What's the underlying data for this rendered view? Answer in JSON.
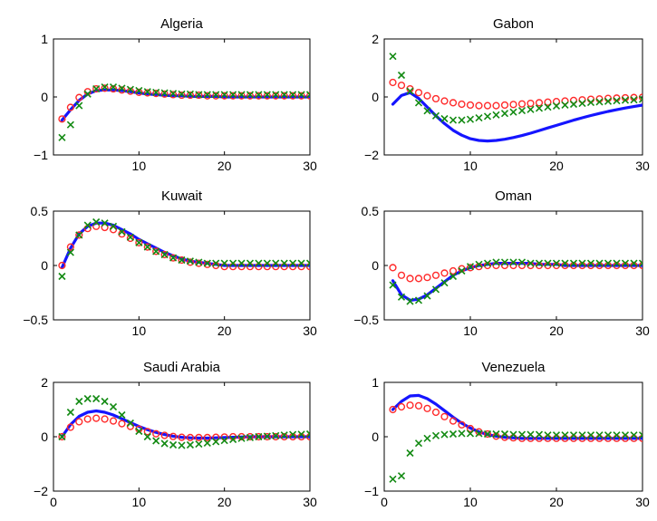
{
  "figure": {
    "colors": {
      "line": "#1515ff",
      "circles": "#ff2a2a",
      "crosses": "#138a13",
      "axes": "#000000"
    }
  },
  "chart_data": [
    {
      "type": "line",
      "title": "Algeria",
      "xlim": [
        0,
        30
      ],
      "ylim": [
        -1,
        1
      ],
      "xticks": [
        10,
        20,
        30
      ],
      "xtick_labels": [
        "10",
        "20",
        "30"
      ],
      "yticks": [
        -1,
        0,
        1
      ],
      "ytick_labels": [
        "−1",
        "0",
        "1"
      ],
      "x": [
        1,
        2,
        3,
        4,
        5,
        6,
        7,
        8,
        9,
        10,
        11,
        12,
        13,
        14,
        15,
        16,
        17,
        18,
        19,
        20,
        21,
        22,
        23,
        24,
        25,
        26,
        27,
        28,
        29,
        30
      ],
      "series": [
        {
          "marker": "line",
          "values": [
            -0.4,
            -0.22,
            -0.06,
            0.05,
            0.11,
            0.12,
            0.12,
            0.11,
            0.09,
            0.07,
            0.05,
            0.04,
            0.03,
            0.02,
            0.02,
            0.01,
            0.01,
            0.01,
            0.01,
            0.0,
            0.0,
            0.0,
            0.0,
            0.0,
            0.0,
            0.0,
            0.0,
            0.0,
            0.0,
            0.0
          ]
        },
        {
          "marker": "circle",
          "values": [
            -0.38,
            -0.18,
            -0.01,
            0.09,
            0.14,
            0.15,
            0.14,
            0.12,
            0.1,
            0.08,
            0.07,
            0.06,
            0.05,
            0.04,
            0.03,
            0.03,
            0.03,
            0.02,
            0.02,
            0.02,
            0.02,
            0.02,
            0.02,
            0.02,
            0.02,
            0.02,
            0.02,
            0.02,
            0.02,
            0.02
          ]
        },
        {
          "marker": "cross",
          "values": [
            -0.7,
            -0.48,
            -0.15,
            0.05,
            0.14,
            0.17,
            0.17,
            0.15,
            0.13,
            0.11,
            0.09,
            0.08,
            0.07,
            0.06,
            0.05,
            0.05,
            0.04,
            0.04,
            0.04,
            0.04,
            0.04,
            0.04,
            0.04,
            0.04,
            0.04,
            0.04,
            0.04,
            0.04,
            0.04,
            0.04
          ]
        }
      ]
    },
    {
      "type": "line",
      "title": "Gabon",
      "xlim": [
        0,
        30
      ],
      "ylim": [
        -2,
        2
      ],
      "xticks": [
        10,
        20,
        30
      ],
      "xtick_labels": [
        "10",
        "20",
        "30"
      ],
      "yticks": [
        -2,
        0,
        2
      ],
      "ytick_labels": [
        "−2",
        "0",
        "2"
      ],
      "x": [
        1,
        2,
        3,
        4,
        5,
        6,
        7,
        8,
        9,
        10,
        11,
        12,
        13,
        14,
        15,
        16,
        17,
        18,
        19,
        20,
        21,
        22,
        23,
        24,
        25,
        26,
        27,
        28,
        29,
        30
      ],
      "series": [
        {
          "marker": "line",
          "values": [
            -0.25,
            0.05,
            0.15,
            -0.05,
            -0.35,
            -0.65,
            -0.92,
            -1.15,
            -1.32,
            -1.44,
            -1.5,
            -1.52,
            -1.5,
            -1.46,
            -1.4,
            -1.33,
            -1.25,
            -1.16,
            -1.07,
            -0.98,
            -0.89,
            -0.8,
            -0.72,
            -0.64,
            -0.57,
            -0.5,
            -0.44,
            -0.38,
            -0.33,
            -0.28
          ]
        },
        {
          "marker": "circle",
          "values": [
            0.5,
            0.4,
            0.28,
            0.15,
            0.04,
            -0.06,
            -0.14,
            -0.2,
            -0.25,
            -0.28,
            -0.3,
            -0.3,
            -0.3,
            -0.28,
            -0.26,
            -0.24,
            -0.22,
            -0.2,
            -0.18,
            -0.16,
            -0.14,
            -0.12,
            -0.1,
            -0.08,
            -0.07,
            -0.05,
            -0.04,
            -0.03,
            -0.02,
            -0.01
          ]
        },
        {
          "marker": "cross",
          "values": [
            1.4,
            0.75,
            0.2,
            -0.2,
            -0.48,
            -0.65,
            -0.75,
            -0.8,
            -0.8,
            -0.77,
            -0.72,
            -0.67,
            -0.62,
            -0.57,
            -0.52,
            -0.47,
            -0.43,
            -0.39,
            -0.35,
            -0.31,
            -0.28,
            -0.25,
            -0.22,
            -0.19,
            -0.17,
            -0.15,
            -0.13,
            -0.11,
            -0.1,
            -0.08
          ]
        }
      ]
    },
    {
      "type": "line",
      "title": "Kuwait",
      "xlim": [
        0,
        30
      ],
      "ylim": [
        -0.5,
        0.5
      ],
      "xticks": [
        10,
        20,
        30
      ],
      "xtick_labels": [
        "10",
        "20",
        "30"
      ],
      "yticks": [
        -0.5,
        0,
        0.5
      ],
      "ytick_labels": [
        "−0.5",
        "0",
        "0.5"
      ],
      "x": [
        1,
        2,
        3,
        4,
        5,
        6,
        7,
        8,
        9,
        10,
        11,
        12,
        13,
        14,
        15,
        16,
        17,
        18,
        19,
        20,
        21,
        22,
        23,
        24,
        25,
        26,
        27,
        28,
        29,
        30
      ],
      "series": [
        {
          "marker": "line",
          "values": [
            -0.02,
            0.16,
            0.29,
            0.36,
            0.39,
            0.39,
            0.37,
            0.33,
            0.29,
            0.24,
            0.2,
            0.16,
            0.12,
            0.09,
            0.06,
            0.04,
            0.03,
            0.02,
            0.01,
            0.0,
            0.0,
            0.0,
            0.0,
            0.0,
            0.0,
            0.0,
            0.0,
            0.0,
            0.0,
            0.0
          ]
        },
        {
          "marker": "circle",
          "values": [
            0.0,
            0.17,
            0.28,
            0.34,
            0.36,
            0.35,
            0.33,
            0.29,
            0.25,
            0.21,
            0.17,
            0.13,
            0.1,
            0.07,
            0.05,
            0.03,
            0.02,
            0.01,
            0.0,
            -0.01,
            -0.01,
            -0.01,
            -0.01,
            -0.01,
            -0.01,
            -0.01,
            -0.01,
            -0.01,
            -0.01,
            -0.01
          ]
        },
        {
          "marker": "cross",
          "values": [
            -0.1,
            0.12,
            0.28,
            0.37,
            0.4,
            0.39,
            0.36,
            0.31,
            0.26,
            0.21,
            0.17,
            0.13,
            0.1,
            0.07,
            0.05,
            0.04,
            0.03,
            0.02,
            0.02,
            0.02,
            0.02,
            0.02,
            0.02,
            0.02,
            0.02,
            0.02,
            0.02,
            0.02,
            0.02,
            0.02
          ]
        }
      ]
    },
    {
      "type": "line",
      "title": "Oman",
      "xlim": [
        0,
        30
      ],
      "ylim": [
        -0.5,
        0.5
      ],
      "xticks": [
        10,
        20,
        30
      ],
      "xtick_labels": [
        "10",
        "20",
        "30"
      ],
      "yticks": [
        -0.5,
        0,
        0.5
      ],
      "ytick_labels": [
        "−0.5",
        "0",
        "0.5"
      ],
      "x": [
        1,
        2,
        3,
        4,
        5,
        6,
        7,
        8,
        9,
        10,
        11,
        12,
        13,
        14,
        15,
        16,
        17,
        18,
        19,
        20,
        21,
        22,
        23,
        24,
        25,
        26,
        27,
        28,
        29,
        30
      ],
      "series": [
        {
          "marker": "line",
          "values": [
            -0.14,
            -0.27,
            -0.32,
            -0.31,
            -0.27,
            -0.21,
            -0.15,
            -0.09,
            -0.05,
            -0.02,
            0.0,
            0.01,
            0.02,
            0.02,
            0.02,
            0.02,
            0.02,
            0.01,
            0.01,
            0.01,
            0.0,
            0.0,
            0.0,
            0.0,
            0.0,
            0.0,
            0.0,
            0.0,
            0.0,
            0.0
          ]
        },
        {
          "marker": "circle",
          "values": [
            -0.02,
            -0.09,
            -0.12,
            -0.12,
            -0.11,
            -0.09,
            -0.07,
            -0.05,
            -0.03,
            -0.02,
            -0.01,
            0.0,
            0.0,
            0.0,
            0.0,
            0.0,
            0.0,
            0.0,
            0.0,
            0.0,
            0.0,
            0.0,
            0.0,
            0.0,
            0.0,
            0.0,
            0.0,
            0.0,
            0.0,
            0.0
          ]
        },
        {
          "marker": "cross",
          "values": [
            -0.18,
            -0.29,
            -0.33,
            -0.32,
            -0.28,
            -0.22,
            -0.16,
            -0.1,
            -0.05,
            -0.01,
            0.01,
            0.02,
            0.03,
            0.03,
            0.03,
            0.03,
            0.02,
            0.02,
            0.02,
            0.02,
            0.02,
            0.02,
            0.02,
            0.02,
            0.02,
            0.02,
            0.02,
            0.02,
            0.02,
            0.02
          ]
        }
      ]
    },
    {
      "type": "line",
      "title": "Saudi Arabia",
      "xlim": [
        0,
        30
      ],
      "ylim": [
        -2,
        2
      ],
      "xticks": [
        0,
        10,
        20,
        30
      ],
      "xtick_labels": [
        "0",
        "10",
        "20",
        "30"
      ],
      "yticks": [
        -2,
        0,
        2
      ],
      "ytick_labels": [
        "−2",
        "0",
        "2"
      ],
      "x": [
        1,
        2,
        3,
        4,
        5,
        6,
        7,
        8,
        9,
        10,
        11,
        12,
        13,
        14,
        15,
        16,
        17,
        18,
        19,
        20,
        21,
        22,
        23,
        24,
        25,
        26,
        27,
        28,
        29,
        30
      ],
      "series": [
        {
          "marker": "line",
          "values": [
            0.0,
            0.45,
            0.75,
            0.9,
            0.95,
            0.9,
            0.8,
            0.66,
            0.52,
            0.38,
            0.26,
            0.16,
            0.08,
            0.02,
            -0.02,
            -0.04,
            -0.05,
            -0.05,
            -0.04,
            -0.03,
            -0.02,
            -0.01,
            0.0,
            0.0,
            0.0,
            0.0,
            0.0,
            0.0,
            0.0,
            0.0
          ]
        },
        {
          "marker": "circle",
          "values": [
            0.0,
            0.35,
            0.55,
            0.65,
            0.68,
            0.65,
            0.58,
            0.48,
            0.38,
            0.28,
            0.19,
            0.11,
            0.05,
            0.01,
            -0.02,
            -0.03,
            -0.03,
            -0.03,
            -0.02,
            -0.01,
            0.0,
            0.0,
            0.0,
            0.0,
            0.0,
            0.0,
            0.0,
            0.0,
            0.0,
            0.0
          ]
        },
        {
          "marker": "cross",
          "values": [
            0.0,
            0.9,
            1.3,
            1.4,
            1.4,
            1.3,
            1.1,
            0.8,
            0.5,
            0.2,
            0.0,
            -0.15,
            -0.25,
            -0.3,
            -0.32,
            -0.3,
            -0.27,
            -0.23,
            -0.18,
            -0.14,
            -0.1,
            -0.06,
            -0.03,
            0.0,
            0.02,
            0.04,
            0.06,
            0.08,
            0.09,
            0.1
          ]
        }
      ]
    },
    {
      "type": "line",
      "title": "Venezuela",
      "xlim": [
        0,
        30
      ],
      "ylim": [
        -1,
        1
      ],
      "xticks": [
        0,
        10,
        20,
        30
      ],
      "xtick_labels": [
        "0",
        "10",
        "20",
        "30"
      ],
      "yticks": [
        -1,
        0,
        1
      ],
      "ytick_labels": [
        "−1",
        "0",
        "1"
      ],
      "x": [
        1,
        2,
        3,
        4,
        5,
        6,
        7,
        8,
        9,
        10,
        11,
        12,
        13,
        14,
        15,
        16,
        17,
        18,
        19,
        20,
        21,
        22,
        23,
        24,
        25,
        26,
        27,
        28,
        29,
        30
      ],
      "series": [
        {
          "marker": "line",
          "values": [
            0.5,
            0.65,
            0.75,
            0.76,
            0.7,
            0.6,
            0.48,
            0.36,
            0.25,
            0.16,
            0.09,
            0.04,
            0.01,
            -0.01,
            -0.02,
            -0.03,
            -0.03,
            -0.03,
            -0.03,
            -0.03,
            -0.03,
            -0.03,
            -0.03,
            -0.03,
            -0.03,
            -0.03,
            -0.03,
            -0.03,
            -0.03,
            -0.03
          ]
        },
        {
          "marker": "circle",
          "values": [
            0.5,
            0.55,
            0.58,
            0.57,
            0.52,
            0.45,
            0.37,
            0.29,
            0.22,
            0.15,
            0.09,
            0.05,
            0.01,
            -0.01,
            -0.02,
            -0.03,
            -0.03,
            -0.03,
            -0.03,
            -0.03,
            -0.03,
            -0.03,
            -0.03,
            -0.03,
            -0.03,
            -0.03,
            -0.03,
            -0.03,
            -0.03,
            -0.03
          ]
        },
        {
          "marker": "cross",
          "values": [
            -0.78,
            -0.72,
            -0.3,
            -0.12,
            -0.03,
            0.02,
            0.04,
            0.05,
            0.06,
            0.06,
            0.06,
            0.05,
            0.05,
            0.05,
            0.04,
            0.04,
            0.04,
            0.04,
            0.03,
            0.03,
            0.03,
            0.03,
            0.03,
            0.03,
            0.03,
            0.03,
            0.03,
            0.03,
            0.03,
            0.03
          ]
        }
      ]
    }
  ]
}
